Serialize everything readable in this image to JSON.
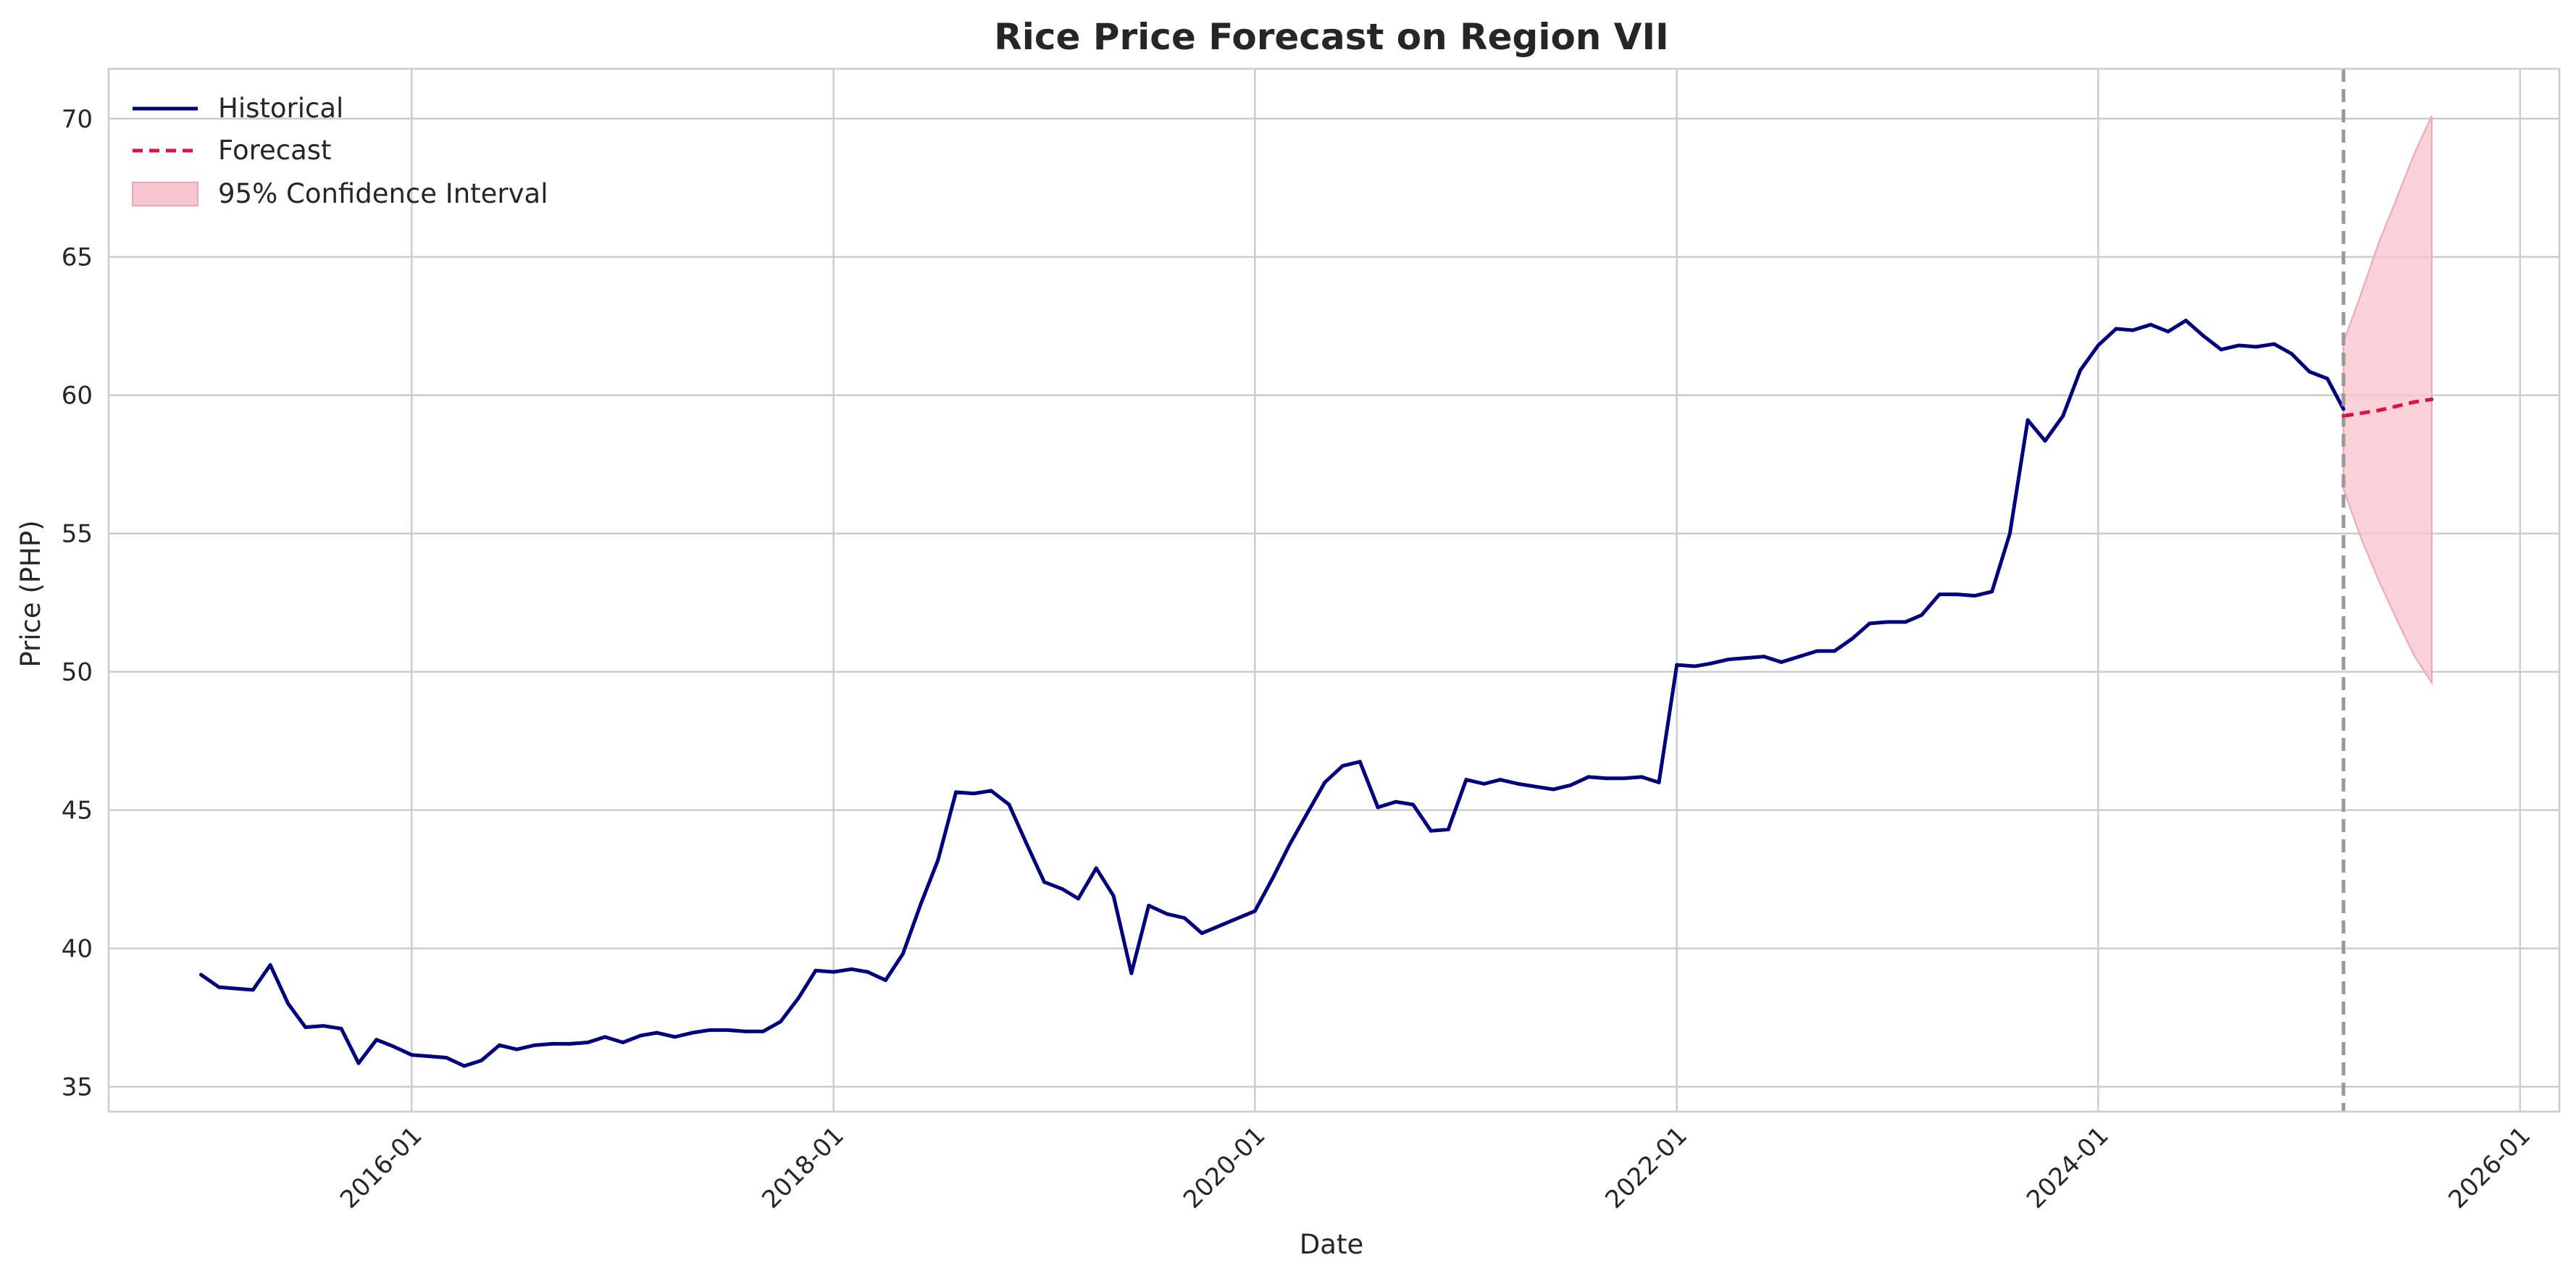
{
  "chart_data": {
    "type": "line",
    "title": "Rice Price Forecast on Region VII",
    "xlabel": "Date",
    "ylabel": "Price (PHP)",
    "x_tick_labels": [
      "2016-01",
      "2018-01",
      "2020-01",
      "2022-01",
      "2024-01",
      "2026-01"
    ],
    "y_tick_labels": [
      "35",
      "40",
      "45",
      "50",
      "55",
      "60",
      "65",
      "70"
    ],
    "y_ticks": [
      35,
      40,
      45,
      50,
      55,
      60,
      65,
      70
    ],
    "ylim": [
      34.1,
      71.8
    ],
    "xlim": [
      "2014-07-25",
      "2026-03-10"
    ],
    "forecast_start": "2025-03-01",
    "grid": true,
    "legend_position": "top-left",
    "colors": {
      "historical": "#00007f",
      "forecast": "#dc143c",
      "ci_fill": "#f7c6d0",
      "ci_edge": "#eea6b6",
      "divider": "#999999",
      "grid": "#cccccc"
    },
    "legend": [
      {
        "label": "Historical",
        "style": "solid-line"
      },
      {
        "label": "Forecast",
        "style": "dashed-line"
      },
      {
        "label": "95% Confidence Interval",
        "style": "filled-box"
      }
    ],
    "series": [
      {
        "name": "Historical",
        "x": [
          "2015-01-01",
          "2015-02-01",
          "2015-03-01",
          "2015-04-01",
          "2015-05-01",
          "2015-06-01",
          "2015-07-01",
          "2015-08-01",
          "2015-09-01",
          "2015-10-01",
          "2015-11-01",
          "2015-12-01",
          "2016-01-01",
          "2016-02-01",
          "2016-03-01",
          "2016-04-01",
          "2016-05-01",
          "2016-06-01",
          "2016-07-01",
          "2016-08-01",
          "2016-09-01",
          "2016-10-01",
          "2016-11-01",
          "2016-12-01",
          "2017-01-01",
          "2017-02-01",
          "2017-03-01",
          "2017-04-01",
          "2017-05-01",
          "2017-06-01",
          "2017-07-01",
          "2017-08-01",
          "2017-09-01",
          "2017-10-01",
          "2017-11-01",
          "2017-12-01",
          "2018-01-01",
          "2018-02-01",
          "2018-03-01",
          "2018-04-01",
          "2018-05-01",
          "2018-06-01",
          "2018-07-01",
          "2018-08-01",
          "2018-09-01",
          "2018-10-01",
          "2018-11-01",
          "2018-12-01",
          "2019-01-01",
          "2019-02-01",
          "2019-03-01",
          "2019-04-01",
          "2019-05-01",
          "2019-06-01",
          "2019-07-01",
          "2019-08-01",
          "2019-09-01",
          "2019-10-01",
          "2020-01-01",
          "2020-02-01",
          "2020-03-01",
          "2020-04-01",
          "2020-05-01",
          "2020-06-01",
          "2020-07-01",
          "2020-08-01",
          "2020-09-01",
          "2020-10-01",
          "2020-11-01",
          "2020-12-01",
          "2021-01-01",
          "2021-02-01",
          "2021-03-01",
          "2021-04-01",
          "2021-05-01",
          "2021-06-01",
          "2021-07-01",
          "2021-08-01",
          "2021-09-01",
          "2021-10-01",
          "2021-11-01",
          "2021-12-01",
          "2022-01-01",
          "2022-02-01",
          "2022-03-01",
          "2022-04-01",
          "2022-05-01",
          "2022-06-01",
          "2022-07-01",
          "2022-08-01",
          "2022-09-01",
          "2022-10-01",
          "2022-11-01",
          "2022-12-01",
          "2023-01-01",
          "2023-02-01",
          "2023-03-01",
          "2023-04-01",
          "2023-05-01",
          "2023-06-01",
          "2023-07-01",
          "2023-08-01",
          "2023-09-01",
          "2023-10-01",
          "2023-11-01",
          "2023-12-01",
          "2024-01-01",
          "2024-02-01",
          "2024-03-01",
          "2024-04-01",
          "2024-05-01",
          "2024-06-01",
          "2024-07-01",
          "2024-08-01",
          "2024-09-01",
          "2024-10-01",
          "2024-11-01",
          "2024-12-01",
          "2025-01-01",
          "2025-02-01",
          "2025-03-01"
        ],
        "values": [
          39.05,
          38.6,
          38.55,
          38.5,
          39.4,
          38.0,
          37.15,
          37.2,
          37.1,
          35.85,
          36.7,
          36.45,
          36.15,
          36.1,
          36.05,
          35.75,
          35.95,
          36.5,
          36.35,
          36.5,
          36.55,
          36.55,
          36.6,
          36.8,
          36.6,
          36.85,
          36.95,
          36.8,
          36.95,
          37.05,
          37.05,
          37.0,
          37.0,
          37.35,
          38.2,
          39.2,
          39.15,
          39.25,
          39.15,
          38.85,
          39.8,
          41.6,
          43.2,
          45.65,
          45.6,
          45.7,
          45.2,
          43.8,
          42.4,
          42.15,
          41.8,
          42.9,
          41.9,
          39.1,
          41.55,
          41.25,
          41.1,
          40.55,
          41.35,
          42.55,
          43.75,
          44.9,
          46.0,
          46.6,
          46.75,
          45.1,
          45.3,
          45.2,
          44.25,
          44.3,
          46.1,
          45.95,
          46.1,
          45.95,
          45.85,
          45.75,
          45.9,
          46.2,
          46.15,
          46.15,
          46.2,
          46.0,
          50.25,
          50.2,
          50.3,
          50.45,
          50.5,
          50.55,
          50.35,
          50.55,
          50.75,
          50.75,
          51.2,
          51.75,
          51.8,
          51.8,
          52.05,
          52.8,
          52.8,
          52.75,
          52.9,
          55.0,
          59.1,
          58.35,
          59.25,
          60.9,
          61.8,
          62.4,
          62.35,
          62.55,
          62.3,
          62.7,
          62.15,
          61.65,
          61.8,
          61.75,
          61.85,
          61.5,
          60.85,
          60.6,
          59.5
        ]
      },
      {
        "name": "Forecast",
        "x": [
          "2025-03-01",
          "2025-04-01",
          "2025-05-01",
          "2025-06-01",
          "2025-07-01",
          "2025-08-01"
        ],
        "values": [
          59.25,
          59.35,
          59.45,
          59.6,
          59.75,
          59.85
        ]
      },
      {
        "name": "95% Confidence Interval",
        "x": [
          "2025-03-01",
          "2025-04-01",
          "2025-05-01",
          "2025-06-01",
          "2025-07-01",
          "2025-08-01"
        ],
        "lower": [
          56.6,
          54.8,
          53.3,
          51.9,
          50.6,
          49.6
        ],
        "upper": [
          61.9,
          63.7,
          65.5,
          67.1,
          68.7,
          70.1
        ]
      }
    ]
  }
}
